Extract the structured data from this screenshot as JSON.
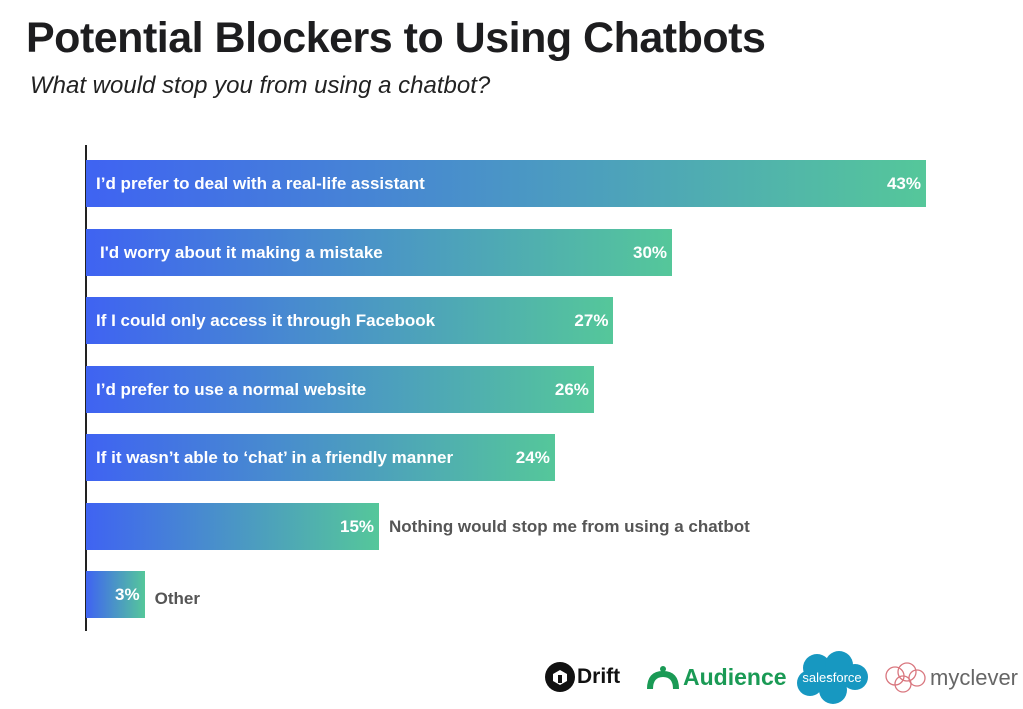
{
  "chart_data": {
    "type": "bar",
    "orientation": "horizontal",
    "title": "Potential Blockers to Using Chatbots",
    "subtitle": "What would stop you from using a chatbot?",
    "categories": [
      "I’d prefer to deal with a real-life assistant",
      "I'd worry about it making a mistake",
      "If I could only access it through Facebook",
      "I’d prefer to use a normal website",
      "If it wasn’t able to ‘chat’ in a friendly manner",
      "Nothing would stop me from using a chatbot",
      "Other"
    ],
    "values": [
      43,
      30,
      27,
      26,
      24,
      15,
      3
    ],
    "value_labels": [
      "43%",
      "30%",
      "27%",
      "26%",
      "24%",
      "15%",
      "3%"
    ],
    "xlim": [
      0,
      43
    ],
    "grid": false,
    "gradient_colors": [
      "#3F63F2",
      "#55C79A"
    ]
  },
  "logos": [
    "Drift",
    "Audience",
    "salesforce",
    "myclever"
  ]
}
